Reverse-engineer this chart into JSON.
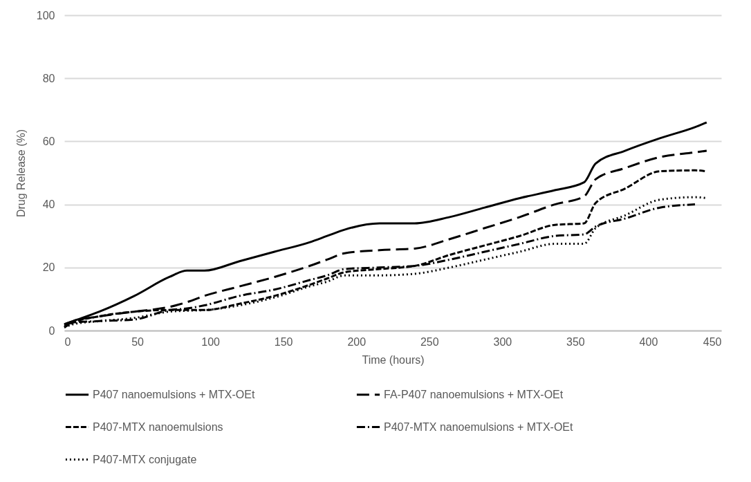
{
  "chart_data": {
    "type": "line",
    "xlabel": "Time (hours)",
    "ylabel": "Drug Release (%)",
    "xlim": [
      0,
      450
    ],
    "xticks": [
      0,
      50,
      100,
      150,
      200,
      250,
      300,
      350,
      400,
      450
    ],
    "ylim": [
      0,
      100
    ],
    "yticks": [
      0,
      20,
      40,
      60,
      80,
      100
    ],
    "grid": "y",
    "legend": "bottom",
    "marker": "none",
    "x": [
      0,
      6,
      24,
      48,
      72,
      84,
      96,
      120,
      144,
      168,
      180,
      192,
      216,
      240,
      264,
      288,
      312,
      336,
      356,
      364,
      384,
      408,
      432,
      440
    ],
    "series": [
      {
        "name": "P407 nanoemulsions + MTX-OEt",
        "color": "#000000",
        "line_style": "solid",
        "values": [
          2,
          3,
          6,
          11,
          17,
          19,
          19,
          22,
          25,
          28,
          30,
          32,
          34,
          34,
          36,
          39,
          42,
          44.5,
          47,
          53,
          57,
          61,
          64.5,
          66
        ]
      },
      {
        "name": "FA-P407 nanoemulsions + MTX-OEt",
        "color": "#000000",
        "line_style": "longdash",
        "values": [
          2,
          3,
          4.5,
          6,
          7.5,
          9,
          11,
          14,
          17,
          20.5,
          22.5,
          24.5,
          25.5,
          26,
          29,
          32.5,
          36,
          40,
          42.5,
          48,
          51.5,
          55,
          56.5,
          57
        ]
      },
      {
        "name": "P407-MTX nanoemulsions",
        "color": "#000000",
        "line_style": "dashed",
        "values": [
          1,
          2.5,
          4.5,
          6,
          6.5,
          6.5,
          6.5,
          8.5,
          11,
          14.5,
          16.5,
          18.5,
          19.5,
          20.5,
          24,
          27,
          30,
          33.5,
          34,
          40.5,
          45,
          50.5,
          50.8,
          50.5
        ]
      },
      {
        "name": "P407-MTX nanoemulsions + MTX-OEt",
        "color": "#000000",
        "line_style": "dashdot",
        "values": [
          1.5,
          2.5,
          3,
          3.5,
          6.5,
          7,
          8,
          11,
          13,
          16,
          17.5,
          19.5,
          20,
          20.5,
          22.5,
          25,
          27.5,
          30,
          30.5,
          33,
          35.5,
          39,
          40,
          null
        ]
      },
      {
        "name": "P407-MTX conjugate",
        "color": "#000000",
        "line_style": "dotted",
        "values": [
          1,
          2,
          3,
          4,
          6,
          6.3,
          6.5,
          8,
          10.5,
          14,
          15.5,
          17.5,
          17.5,
          18,
          20,
          22.5,
          25,
          27.5,
          27.5,
          32.5,
          36.5,
          41.5,
          42.3,
          42
        ]
      }
    ]
  }
}
